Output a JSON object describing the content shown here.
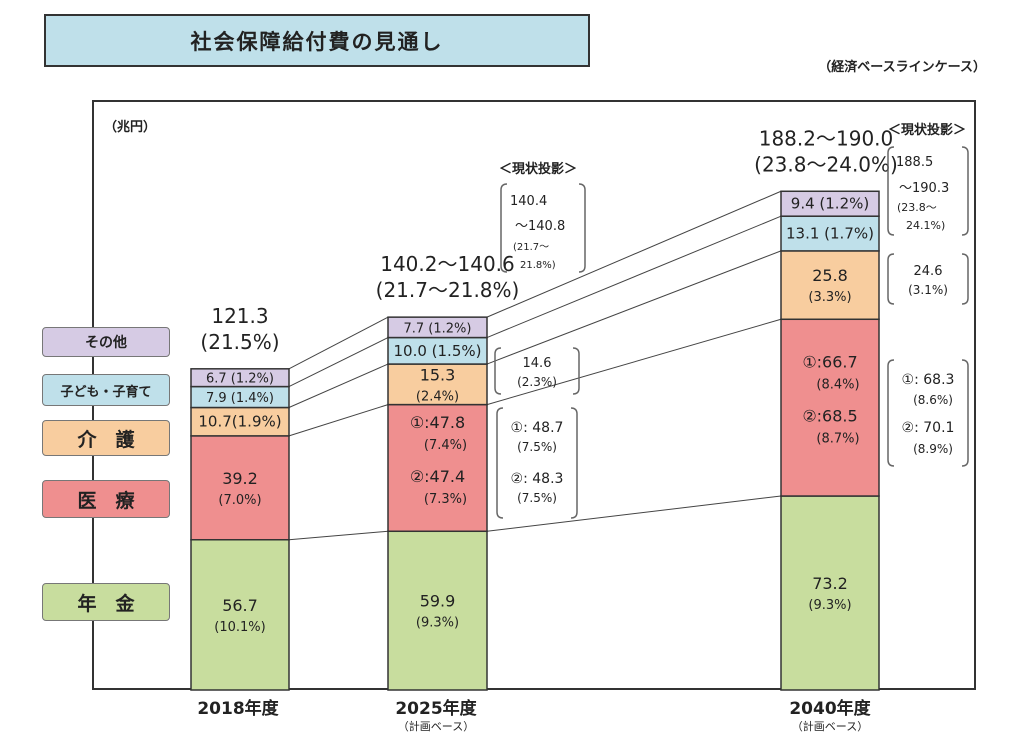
{
  "title": "社会保障給付費の見通し",
  "case_note": "（経済ベースラインケース）",
  "unit": "（兆円）",
  "legend": [
    {
      "label": "その他",
      "color": "#d6cbe4"
    },
    {
      "label": "子ども・子育て",
      "color": "#bfe0ea"
    },
    {
      "label": "介　護",
      "color": "#f8cd9f"
    },
    {
      "label": "医　療",
      "color": "#ef8f8f"
    },
    {
      "label": "年　金",
      "color": "#c8dd9e"
    }
  ],
  "chart_data": {
    "type": "bar",
    "stacked": true,
    "unit": "兆円",
    "categories": [
      "2018年度",
      "2025年度",
      "2040年度"
    ],
    "category_notes": [
      "",
      "（計画ベース）",
      "（計画ベース）"
    ],
    "series": [
      {
        "name": "年金",
        "values": [
          56.7,
          59.9,
          73.2
        ],
        "labels": [
          "56.7",
          "59.9",
          "73.2"
        ],
        "sublabels": [
          "(10.1%)",
          "(9.3%)",
          "(9.3%)"
        ]
      },
      {
        "name": "医療",
        "values": [
          39.2,
          47.8,
          66.7
        ],
        "labels": [
          "39.2",
          "①:47.8",
          "①:66.7"
        ],
        "sublabels": [
          "(7.0%)",
          "(7.4%)",
          "(8.4%)"
        ],
        "labels2": [
          "",
          "②:47.4",
          "②:68.5"
        ],
        "sublabels2": [
          "",
          "(7.3%)",
          "(8.7%)"
        ]
      },
      {
        "name": "介護",
        "values": [
          10.7,
          15.3,
          25.8
        ],
        "labels": [
          "10.7(1.9%)",
          "15.3",
          "25.8"
        ],
        "sublabels": [
          "",
          "(2.4%)",
          "(3.3%)"
        ]
      },
      {
        "name": "子ども・子育て",
        "values": [
          7.9,
          10.0,
          13.1
        ],
        "labels": [
          "7.9 (1.4%)",
          "10.0 (1.5%)",
          "13.1 (1.7%)"
        ]
      },
      {
        "name": "その他",
        "values": [
          6.7,
          7.7,
          9.4
        ],
        "labels": [
          "6.7 (1.2%)",
          "7.7 (1.2%)",
          "9.4 (1.2%)"
        ]
      }
    ],
    "totals": [
      {
        "value": "121.3",
        "pct": "(21.5%)"
      },
      {
        "value": "140.2〜140.6",
        "pct": "(21.7〜21.8%)"
      },
      {
        "value": "188.2〜190.0",
        "pct": "(23.8〜24.0%)"
      }
    ],
    "projection_header": "＜現状投影＞",
    "projections_2025": {
      "total": [
        "140.4",
        "〜140.8",
        "(21.7〜",
        "21.8%)"
      ],
      "kaigo": [
        "14.6",
        "(2.3%)"
      ],
      "iryo": [
        "①: 48.7",
        "(7.5%)",
        "②: 48.3",
        "(7.5%)"
      ]
    },
    "projections_2040": {
      "total": [
        "188.5",
        "〜190.3",
        "(23.8〜",
        "24.1%)"
      ],
      "kaigo": [
        "24.6",
        "(3.1%)"
      ],
      "iryo": [
        "①: 68.3",
        "(8.6%)",
        "②: 70.1",
        "(8.9%)"
      ]
    }
  }
}
